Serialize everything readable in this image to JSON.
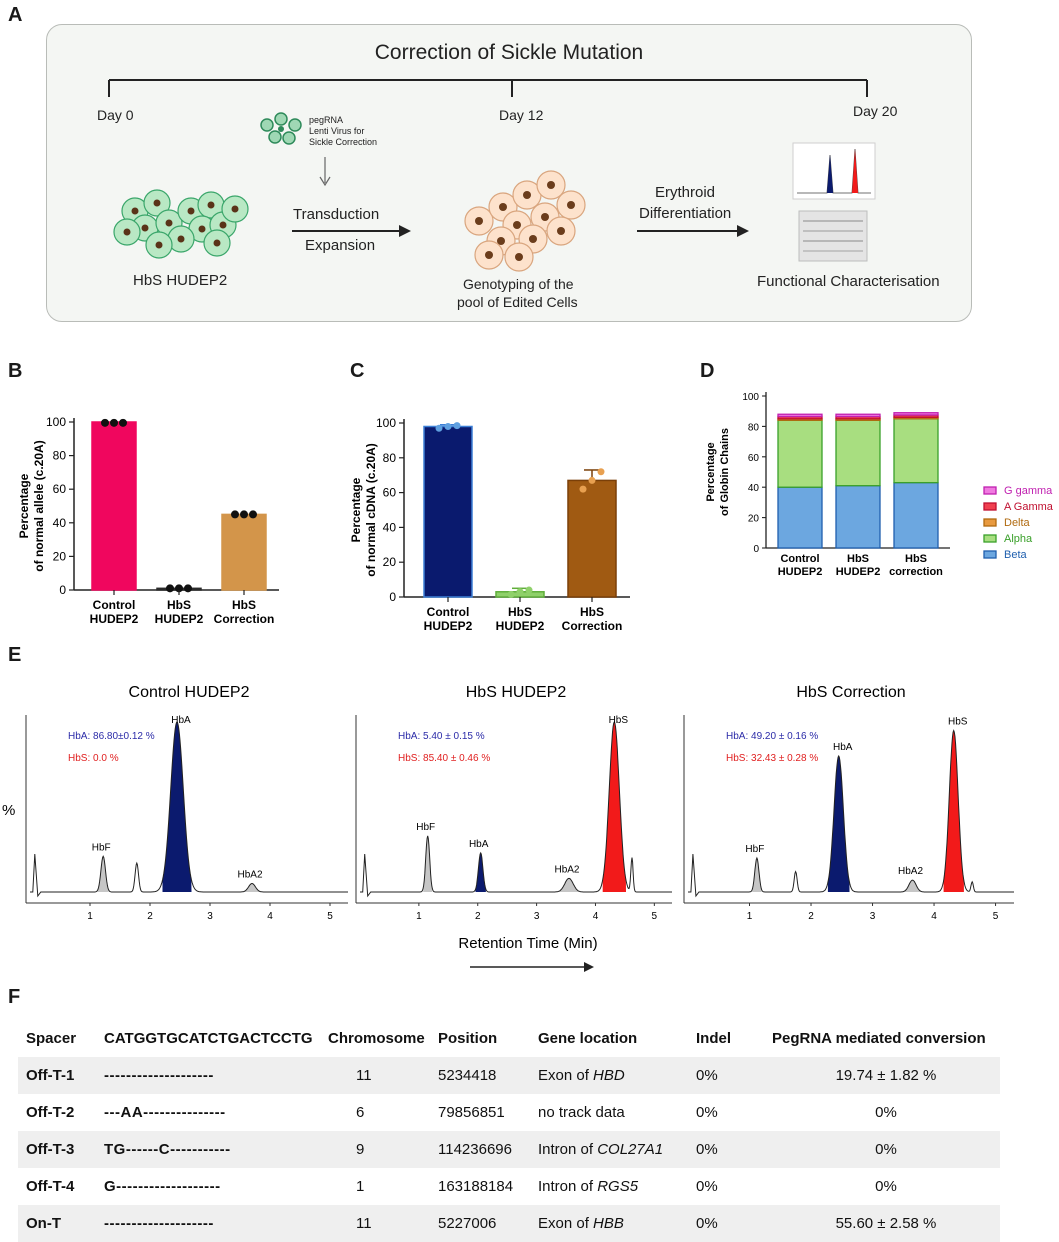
{
  "panel_labels": {
    "a": "A",
    "b": "B",
    "c": "C",
    "d": "D",
    "e": "E",
    "f": "F"
  },
  "panelA": {
    "title": "Correction of Sickle Mutation",
    "day0": "Day 0",
    "day12": "Day 12",
    "day20": "Day 20",
    "virus_label_1": "pegRNA",
    "virus_label_2": "Lenti Virus for",
    "virus_label_3": "Sickle Correction",
    "transduction": "Transduction",
    "expansion": "Expansion",
    "erythroid": "Erythroid",
    "differentiation": "Differentiation",
    "cells1_label": "HbS HUDEP2",
    "cells2_label_1": "Genotyping of the",
    "cells2_label_2": "pool of Edited Cells",
    "cells3_label": "Functional Characterisation"
  },
  "chart_data": [
    {
      "id": "B",
      "type": "bar",
      "ylabel_1": "Percentage",
      "ylabel_2": "of normal allele (c.20A)",
      "categories": [
        [
          "Control",
          "HUDEP2"
        ],
        [
          "HbS",
          "HUDEP2"
        ],
        [
          "HbS",
          "Correction"
        ]
      ],
      "values": [
        100,
        1,
        45
      ],
      "points": [
        [
          99.5,
          99.5,
          99.5
        ],
        [
          1,
          1,
          1
        ],
        [
          45,
          45,
          45
        ]
      ],
      "colors": [
        "#f0065e",
        "#2b2b2b",
        "#d3954a"
      ],
      "ylim": [
        0,
        100
      ],
      "yticks": [
        "0",
        "20",
        "40",
        "60",
        "80",
        "100"
      ]
    },
    {
      "id": "C",
      "type": "bar",
      "ylabel_1": "Percentage",
      "ylabel_2": "of normal cDNA (c.20A)",
      "categories": [
        [
          "Control",
          "HUDEP2"
        ],
        [
          "HbS",
          "HUDEP2"
        ],
        [
          "HbS",
          "Correction"
        ]
      ],
      "values": [
        98,
        3,
        67
      ],
      "errors": [
        1,
        2,
        6
      ],
      "points": [
        [
          97,
          98,
          98.5
        ],
        [
          1.5,
          3,
          4
        ],
        [
          62,
          67,
          72
        ]
      ],
      "colors": [
        "#0a1a6e",
        "#8fd06a",
        "#a05a12"
      ],
      "edge_colors": [
        "#3c7fd6",
        "#5fae3a",
        "#7a3f08"
      ],
      "ylim": [
        0,
        100
      ],
      "yticks": [
        "0",
        "20",
        "40",
        "60",
        "80",
        "100"
      ]
    },
    {
      "id": "D",
      "type": "stacked-bar",
      "ylabel_1": "Percentage",
      "ylabel_2": "of Globin Chains",
      "categories": [
        [
          "Control",
          "HUDEP2"
        ],
        [
          "HbS",
          "HUDEP2"
        ],
        [
          "HbS",
          "correction"
        ]
      ],
      "series": [
        {
          "name": "Beta",
          "values": [
            40,
            41,
            43
          ],
          "color": "#6ca7e0",
          "edge": "#1f5fae"
        },
        {
          "name": "Alpha",
          "values": [
            44,
            43,
            42
          ],
          "color": "#a8de80",
          "edge": "#3aa02a"
        },
        {
          "name": "Delta",
          "values": [
            1,
            1,
            1
          ],
          "color": "#e89a40",
          "edge": "#b06a10"
        },
        {
          "name": "A Gamma",
          "values": [
            1.5,
            1.5,
            1.5
          ],
          "color": "#f04050",
          "edge": "#c01030"
        },
        {
          "name": "G gamma",
          "values": [
            1.5,
            1.5,
            1.5
          ],
          "color": "#f07ae0",
          "edge": "#c020b0"
        }
      ],
      "legend_order": [
        "G gamma",
        "A Gamma",
        "Delta",
        "Alpha",
        "Beta"
      ],
      "ylim": [
        0,
        100
      ],
      "yticks": [
        "0",
        "20",
        "40",
        "60",
        "80",
        "100"
      ]
    },
    {
      "id": "E",
      "type": "line",
      "ylabel": "%",
      "xlabel": "Retention Time (Min)",
      "xticks": [
        "1",
        "2",
        "3",
        "4",
        "5"
      ],
      "xlim": [
        0,
        5.3
      ],
      "panels": [
        {
          "title": "Control HUDEP2",
          "hba_text": "HbA: 86.80±0.12 %",
          "hbs_text": "HbS: 0.0 %",
          "peaks": [
            {
              "label": "HbF",
              "center": 1.22,
              "height": 0.21,
              "width": 0.08,
              "fill": "#c6c6c6"
            },
            {
              "label": "",
              "center": 1.78,
              "height": 0.17,
              "width": 0.06,
              "fill": "none"
            },
            {
              "label": "HbA",
              "center": 2.45,
              "height": 1.0,
              "width": 0.22,
              "fill": "#0b1a6e"
            },
            {
              "label": "HbA2",
              "center": 3.7,
              "height": 0.05,
              "width": 0.12,
              "fill": "#c6c6c6"
            }
          ]
        },
        {
          "title": "HbS HUDEP2",
          "hba_text": "HbA:  5.40 ± 0.15 %",
          "hbs_text": "HbS: 85.40 ± 0.46 %",
          "peaks": [
            {
              "label": "HbF",
              "center": 1.15,
              "height": 0.33,
              "width": 0.07,
              "fill": "#c6c6c6"
            },
            {
              "label": "HbA",
              "center": 2.05,
              "height": 0.23,
              "width": 0.08,
              "fill": "#0b1a6e"
            },
            {
              "label": "HbA2",
              "center": 3.55,
              "height": 0.08,
              "width": 0.15,
              "fill": "#c6c6c6"
            },
            {
              "label": "HbS",
              "center": 4.32,
              "height": 1.0,
              "width": 0.18,
              "fill": "#f21a1a"
            },
            {
              "label": "",
              "center": 4.62,
              "height": 0.2,
              "width": 0.04,
              "fill": "none"
            }
          ]
        },
        {
          "title": "HbS Correction",
          "hba_text": "HbA: 49.20 ± 0.16 %",
          "hbs_text": "HbS: 32.43 ± 0.28 %",
          "peaks": [
            {
              "label": "HbF",
              "center": 1.12,
              "height": 0.2,
              "width": 0.07,
              "fill": "#c6c6c6"
            },
            {
              "label": "",
              "center": 1.75,
              "height": 0.12,
              "width": 0.05,
              "fill": "none"
            },
            {
              "label": "HbA",
              "center": 2.45,
              "height": 0.8,
              "width": 0.16,
              "fill": "#0b1a6e"
            },
            {
              "label": "HbA2",
              "center": 3.65,
              "height": 0.07,
              "width": 0.12,
              "fill": "#c6c6c6"
            },
            {
              "label": "HbS",
              "center": 4.32,
              "height": 0.95,
              "width": 0.15,
              "fill": "#f21a1a"
            },
            {
              "label": "",
              "center": 4.62,
              "height": 0.06,
              "width": 0.04,
              "fill": "none"
            }
          ]
        }
      ]
    }
  ],
  "panelF": {
    "headers": {
      "spacer": "Spacer",
      "seq": "CATGGTGCATCTGACTCCTG",
      "chrom": "Chromosome",
      "pos": "Position",
      "gene": "Gene location",
      "indel": "Indel",
      "conv": "PegRNA mediated conversion"
    },
    "rows": [
      {
        "spacer": "Off-T-1",
        "seq": "--------------------",
        "chrom": "11",
        "pos": "5234418",
        "gene_pre": "Exon of ",
        "gene_it": "HBD",
        "indel": "0%",
        "conv": "19.74 ± 1.82 %"
      },
      {
        "spacer": "Off-T-2",
        "seq": "---AA---------------",
        "chrom": "6",
        "pos": "79856851",
        "gene_pre": "no track data",
        "gene_it": "",
        "indel": "0%",
        "conv": "0%"
      },
      {
        "spacer": "Off-T-3",
        "seq": "TG------C-----------",
        "chrom": "9",
        "pos": "114236696",
        "gene_pre": "Intron of ",
        "gene_it": "COL27A1",
        "indel": "0%",
        "conv": "0%"
      },
      {
        "spacer": "Off-T-4",
        "seq": "G-------------------",
        "chrom": "1",
        "pos": "163188184",
        "gene_pre": "Intron of ",
        "gene_it": "RGS5",
        "indel": "0%",
        "conv": "0%"
      },
      {
        "spacer": "On-T",
        "seq": "--------------------",
        "chrom": "11",
        "pos": "5227006",
        "gene_pre": "Exon of ",
        "gene_it": "HBB",
        "indel": "0%",
        "conv": "55.60 ± 2.58 %"
      }
    ]
  },
  "colors": {
    "hba_text": "#2b2ba8",
    "hbs_text": "#e02020",
    "dark_blue": "#0b1a6e",
    "red": "#f21a1a"
  }
}
